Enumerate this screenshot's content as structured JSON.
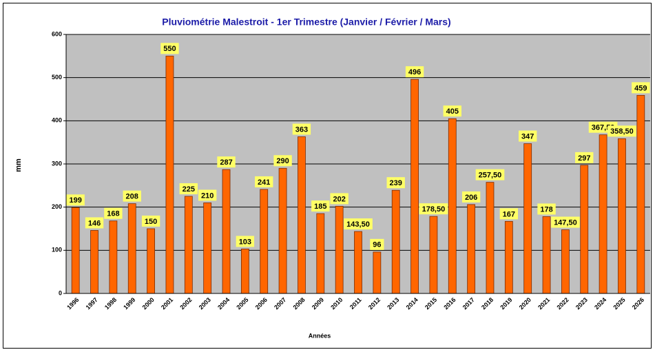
{
  "chart_data": {
    "type": "bar",
    "title": "Pluviométrie Malestroit - 1er Trimestre (Janvier / Février / Mars)",
    "y_label": "mm",
    "x_label": "Années",
    "categories": [
      "1996",
      "1997",
      "1998",
      "1999",
      "2000",
      "2001",
      "2002",
      "2003",
      "2004",
      "2005",
      "2006",
      "2007",
      "2008",
      "2009",
      "2010",
      "2011",
      "2012",
      "2013",
      "2014",
      "2015",
      "2016",
      "2017",
      "2018",
      "2019",
      "2020",
      "2021",
      "2022",
      "2023",
      "2024",
      "2025",
      "2026"
    ],
    "values": [
      199,
      146,
      168,
      208,
      150,
      550,
      225,
      210,
      287,
      103,
      241,
      290,
      363,
      185,
      202,
      143.5,
      96,
      239,
      496,
      178.5,
      405,
      206,
      257.5,
      167,
      347,
      178,
      147.5,
      297,
      367.5,
      358.5,
      459
    ],
    "value_labels": [
      "199",
      "146",
      "168",
      "208",
      "150",
      "550",
      "225",
      "210",
      "287",
      "103",
      "241",
      "290",
      "363",
      "185",
      "202",
      "143,50",
      "96",
      "239",
      "496",
      "178,50",
      "405",
      "206",
      "257,50",
      "167",
      "347",
      "178",
      "147,50",
      "297",
      "367,50",
      "358,50",
      "459"
    ],
    "color": "#ff6600",
    "ylim": [
      0,
      600
    ],
    "yticks": [
      0,
      100,
      200,
      300,
      400,
      500,
      600
    ],
    "grid": true
  }
}
